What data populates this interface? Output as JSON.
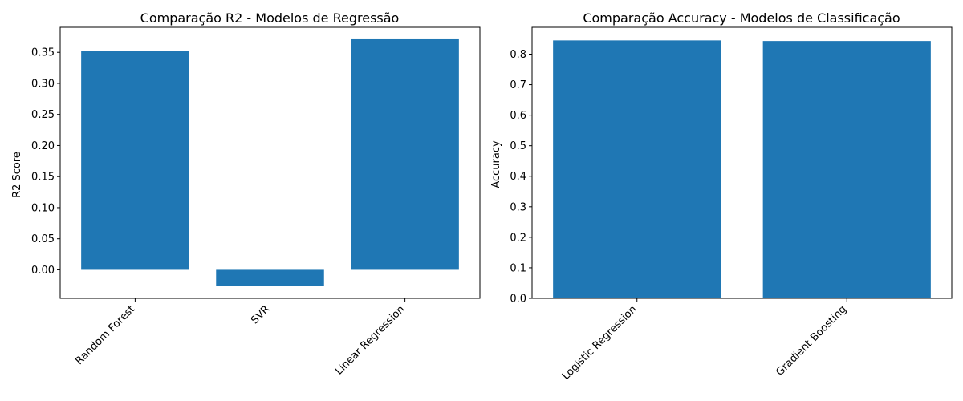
{
  "colors": {
    "bar": "#1f77b4",
    "axis": "#000000",
    "background": "#ffffff"
  },
  "chart_data": [
    {
      "type": "bar",
      "title": "Comparação R2 - Modelos de Regressão",
      "xlabel": "",
      "ylabel": "R2 Score",
      "categories": [
        "Random Forest",
        "SVR",
        "Linear Regression"
      ],
      "values": [
        0.352,
        -0.026,
        0.371
      ],
      "ylim": [
        -0.0459,
        0.3903
      ],
      "yticks": [
        0.0,
        0.05,
        0.1,
        0.15,
        0.2,
        0.25,
        0.3,
        0.35
      ],
      "ytick_labels": [
        "0.00",
        "0.05",
        "0.10",
        "0.15",
        "0.20",
        "0.25",
        "0.30",
        "0.35"
      ],
      "grid": false,
      "x_tick_rotation": 45
    },
    {
      "type": "bar",
      "title": "Comparação Accuracy - Modelos de Classificação",
      "xlabel": "",
      "ylabel": "Accuracy",
      "categories": [
        "Logistic Regression",
        "Gradient Boosting"
      ],
      "values": [
        0.845,
        0.843
      ],
      "ylim": [
        0.0,
        0.888
      ],
      "yticks": [
        0.0,
        0.1,
        0.2,
        0.3,
        0.4,
        0.5,
        0.6,
        0.7,
        0.8
      ],
      "ytick_labels": [
        "0.0",
        "0.1",
        "0.2",
        "0.3",
        "0.4",
        "0.5",
        "0.6",
        "0.7",
        "0.8"
      ],
      "grid": false,
      "x_tick_rotation": 45
    }
  ]
}
